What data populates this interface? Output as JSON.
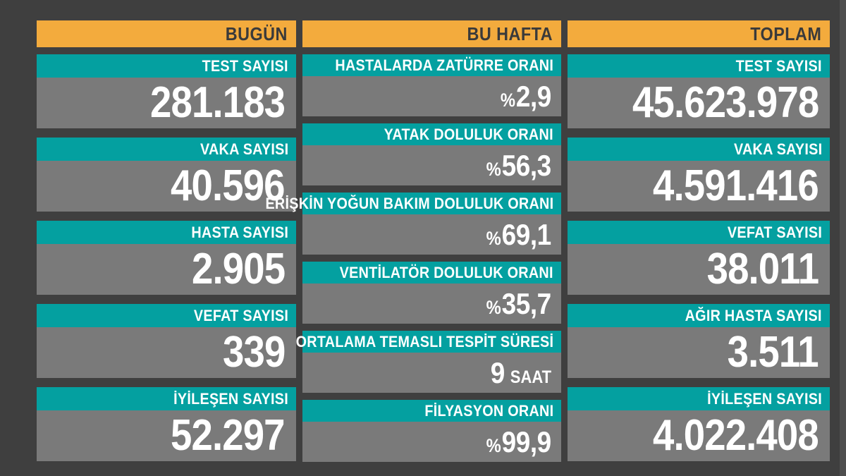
{
  "colors": {
    "background": "#3F3F3F",
    "header_bg": "#F3AB3D",
    "header_text": "#3A3A3A",
    "label_bg": "#04A0A0",
    "label_text": "#FFFFFF",
    "value_bg": "#7A7A7A",
    "value_text": "#FFFFFF"
  },
  "chart_data": {
    "type": "table",
    "title": "",
    "legend": "none",
    "columns": [
      {
        "header": "BUGÜN",
        "stats": [
          {
            "label": "TEST SAYISI",
            "prefix": "",
            "value": "281.183",
            "suffix": ""
          },
          {
            "label": "VAKA SAYISI",
            "prefix": "",
            "value": "40.596",
            "suffix": ""
          },
          {
            "label": "HASTA SAYISI",
            "prefix": "",
            "value": "2.905",
            "suffix": ""
          },
          {
            "label": "VEFAT SAYISI",
            "prefix": "",
            "value": "339",
            "suffix": ""
          },
          {
            "label": "İYİLEŞEN SAYISI",
            "prefix": "",
            "value": "52.297",
            "suffix": ""
          }
        ]
      },
      {
        "header": "BU HAFTA",
        "stats": [
          {
            "label": "HASTALARDA ZATÜRRE ORANI",
            "prefix": "%",
            "value": "2,9",
            "suffix": ""
          },
          {
            "label": "YATAK DOLULUK ORANI",
            "prefix": "%",
            "value": "56,3",
            "suffix": ""
          },
          {
            "label": "ERİŞKİN YOĞUN BAKIM DOLULUK ORANI",
            "prefix": "%",
            "value": "69,1",
            "suffix": ""
          },
          {
            "label": "VENTİLATÖR DOLULUK ORANI",
            "prefix": "%",
            "value": "35,7",
            "suffix": ""
          },
          {
            "label": "ORTALAMA TEMASLI TESPİT SÜRESİ",
            "prefix": "",
            "value": "9",
            "suffix": "SAAT"
          },
          {
            "label": "FİLYASYON ORANI",
            "prefix": "%",
            "value": "99,9",
            "suffix": ""
          }
        ]
      },
      {
        "header": "TOPLAM",
        "stats": [
          {
            "label": "TEST SAYISI",
            "prefix": "",
            "value": "45.623.978",
            "suffix": ""
          },
          {
            "label": "VAKA SAYISI",
            "prefix": "",
            "value": "4.591.416",
            "suffix": ""
          },
          {
            "label": "VEFAT SAYISI",
            "prefix": "",
            "value": "38.011",
            "suffix": ""
          },
          {
            "label": "AĞIR HASTA SAYISI",
            "prefix": "",
            "value": "3.511",
            "suffix": ""
          },
          {
            "label": "İYİLEŞEN SAYISI",
            "prefix": "",
            "value": "4.022.408",
            "suffix": ""
          }
        ]
      }
    ]
  }
}
